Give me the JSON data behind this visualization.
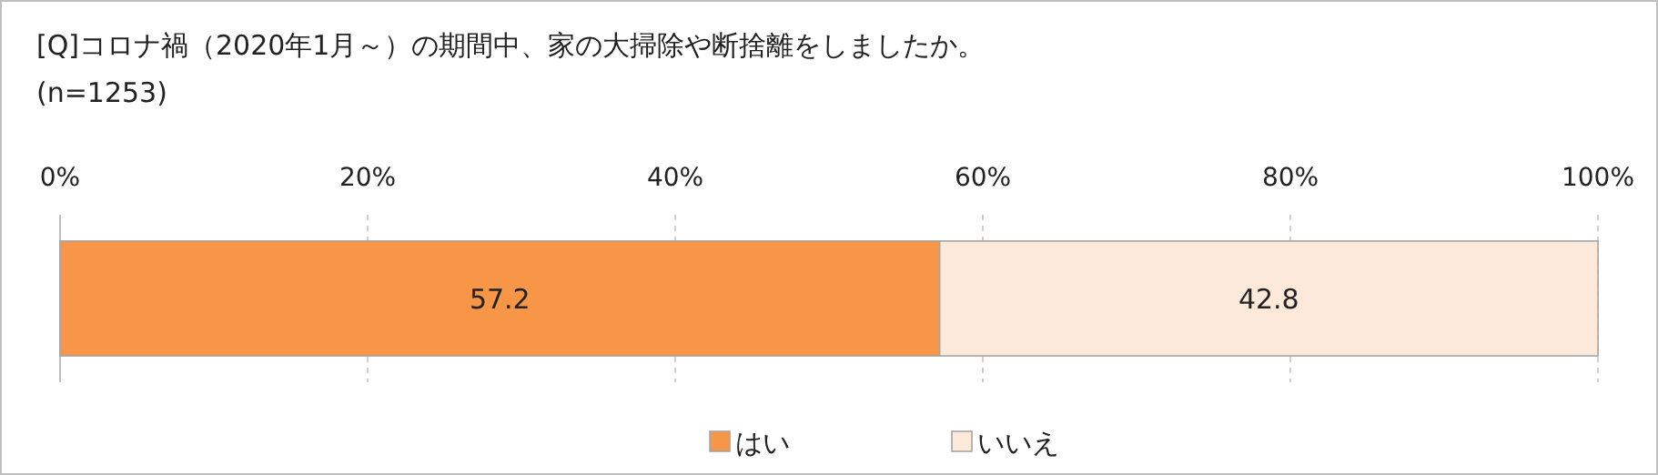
{
  "chart_data": {
    "type": "bar",
    "orientation": "horizontal",
    "stacked": true,
    "title": "[Q]コロナ禍（2020年1月～）の期間中、家の大掃除や断捨離をしましたか。",
    "subtitle": "(n=1253)",
    "categories": [
      null
    ],
    "series": [
      {
        "name": "はい",
        "color": "#f79646",
        "values": [
          57.2
        ]
      },
      {
        "name": "いいえ",
        "color": "#fde9d9",
        "values": [
          42.8
        ]
      }
    ],
    "xlim": [
      0,
      100
    ],
    "xticks": [
      {
        "value": 0,
        "label": "0%"
      },
      {
        "value": 20,
        "label": "20%"
      },
      {
        "value": 40,
        "label": "40%"
      },
      {
        "value": 60,
        "label": "60%"
      },
      {
        "value": 80,
        "label": "80%"
      },
      {
        "value": 100,
        "label": "100%"
      }
    ],
    "grid": "x",
    "data_labels": true,
    "legend": "bottom"
  }
}
